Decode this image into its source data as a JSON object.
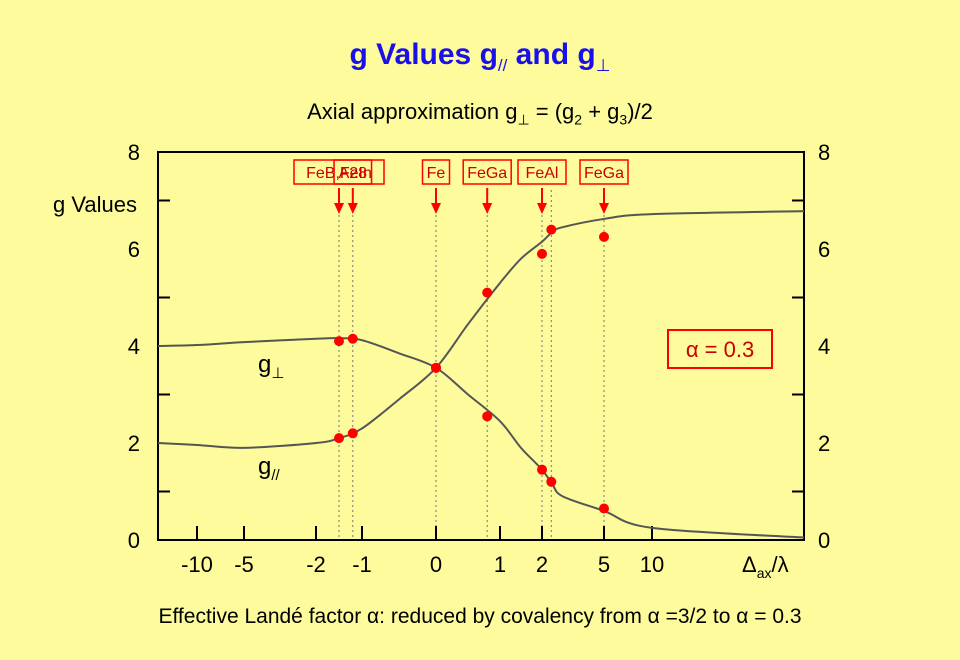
{
  "title": {
    "main": "g Values g",
    "par_sub": "//",
    "and": " and g",
    "perp_sub": "⊥"
  },
  "subtitle": {
    "text": "Axial approximation g",
    "perp_sub": "⊥",
    "eq": " = (g",
    "sub2": "2",
    "plus": " + g",
    "sub3": "3",
    "end": ")/2"
  },
  "caption": "Effective Landé factor α: reduced by covalency from α =3/2 to α = 0.3",
  "colors": {
    "background": "#fdfb9b",
    "title": "#1a10e8",
    "marker": "#ff0000",
    "annotation": "#cc0000",
    "curve": "#555555"
  },
  "chart_data": {
    "type": "line",
    "ylabel": "g Values",
    "xlabel": "Δ",
    "xlabel_sub": "ax",
    "xlabel_tail": "/λ",
    "ylim": [
      0,
      8
    ],
    "y_ticks": [
      "0",
      "2",
      "4",
      "6",
      "8"
    ],
    "x_tick_labels": [
      "-10",
      "-5",
      "-2",
      "-1",
      "0",
      "1",
      "2",
      "5",
      "10"
    ],
    "x_scale": "nonlinear (compressed outer region)",
    "series": [
      {
        "name": "g⊥",
        "label": "g",
        "label_sub": "⊥",
        "x": [
          -13,
          -10,
          -5,
          -2,
          -1.5,
          -1,
          -0.5,
          0,
          0.5,
          1,
          1.5,
          2,
          2.5,
          3,
          5,
          10,
          30
        ],
        "y": [
          4.0,
          4.02,
          4.08,
          4.15,
          4.16,
          4.12,
          3.85,
          3.55,
          3.0,
          2.45,
          1.9,
          1.45,
          1.15,
          0.9,
          0.6,
          0.25,
          0.05
        ]
      },
      {
        "name": "g//",
        "label": "g",
        "label_sub": "//",
        "x": [
          -13,
          -10,
          -5,
          -2,
          -1.5,
          -1,
          -0.5,
          0,
          0.5,
          1,
          1.5,
          2,
          2.5,
          3,
          5,
          10,
          30
        ],
        "y": [
          2.0,
          1.96,
          1.9,
          2.0,
          2.1,
          2.3,
          2.9,
          3.55,
          4.45,
          5.3,
          5.8,
          6.15,
          6.35,
          6.45,
          6.62,
          6.72,
          6.78
        ]
      }
    ],
    "data_points": [
      {
        "label": "FeB,FeIn",
        "x": -1.5,
        "g_perp": 4.1,
        "g_par": 2.1
      },
      {
        "label": "A28",
        "x": -1.2,
        "g_perp": 4.15,
        "g_par": 2.2
      },
      {
        "label": "Fe",
        "x": 0,
        "g_perp": 3.55,
        "g_par": 3.55
      },
      {
        "label": "FeGa",
        "x": 0.8,
        "g_perp": 2.55,
        "g_par": 5.1
      },
      {
        "label": "FeAl",
        "x": 2.0,
        "g_perp": 1.45,
        "g_par": 5.9
      },
      {
        "label": "",
        "x": 2.45,
        "g_perp": 1.2,
        "g_par": 6.4
      },
      {
        "label": "FeGa",
        "x": 5,
        "g_perp": 0.65,
        "g_par": 6.25
      }
    ],
    "annotation": "α = 0.3"
  }
}
